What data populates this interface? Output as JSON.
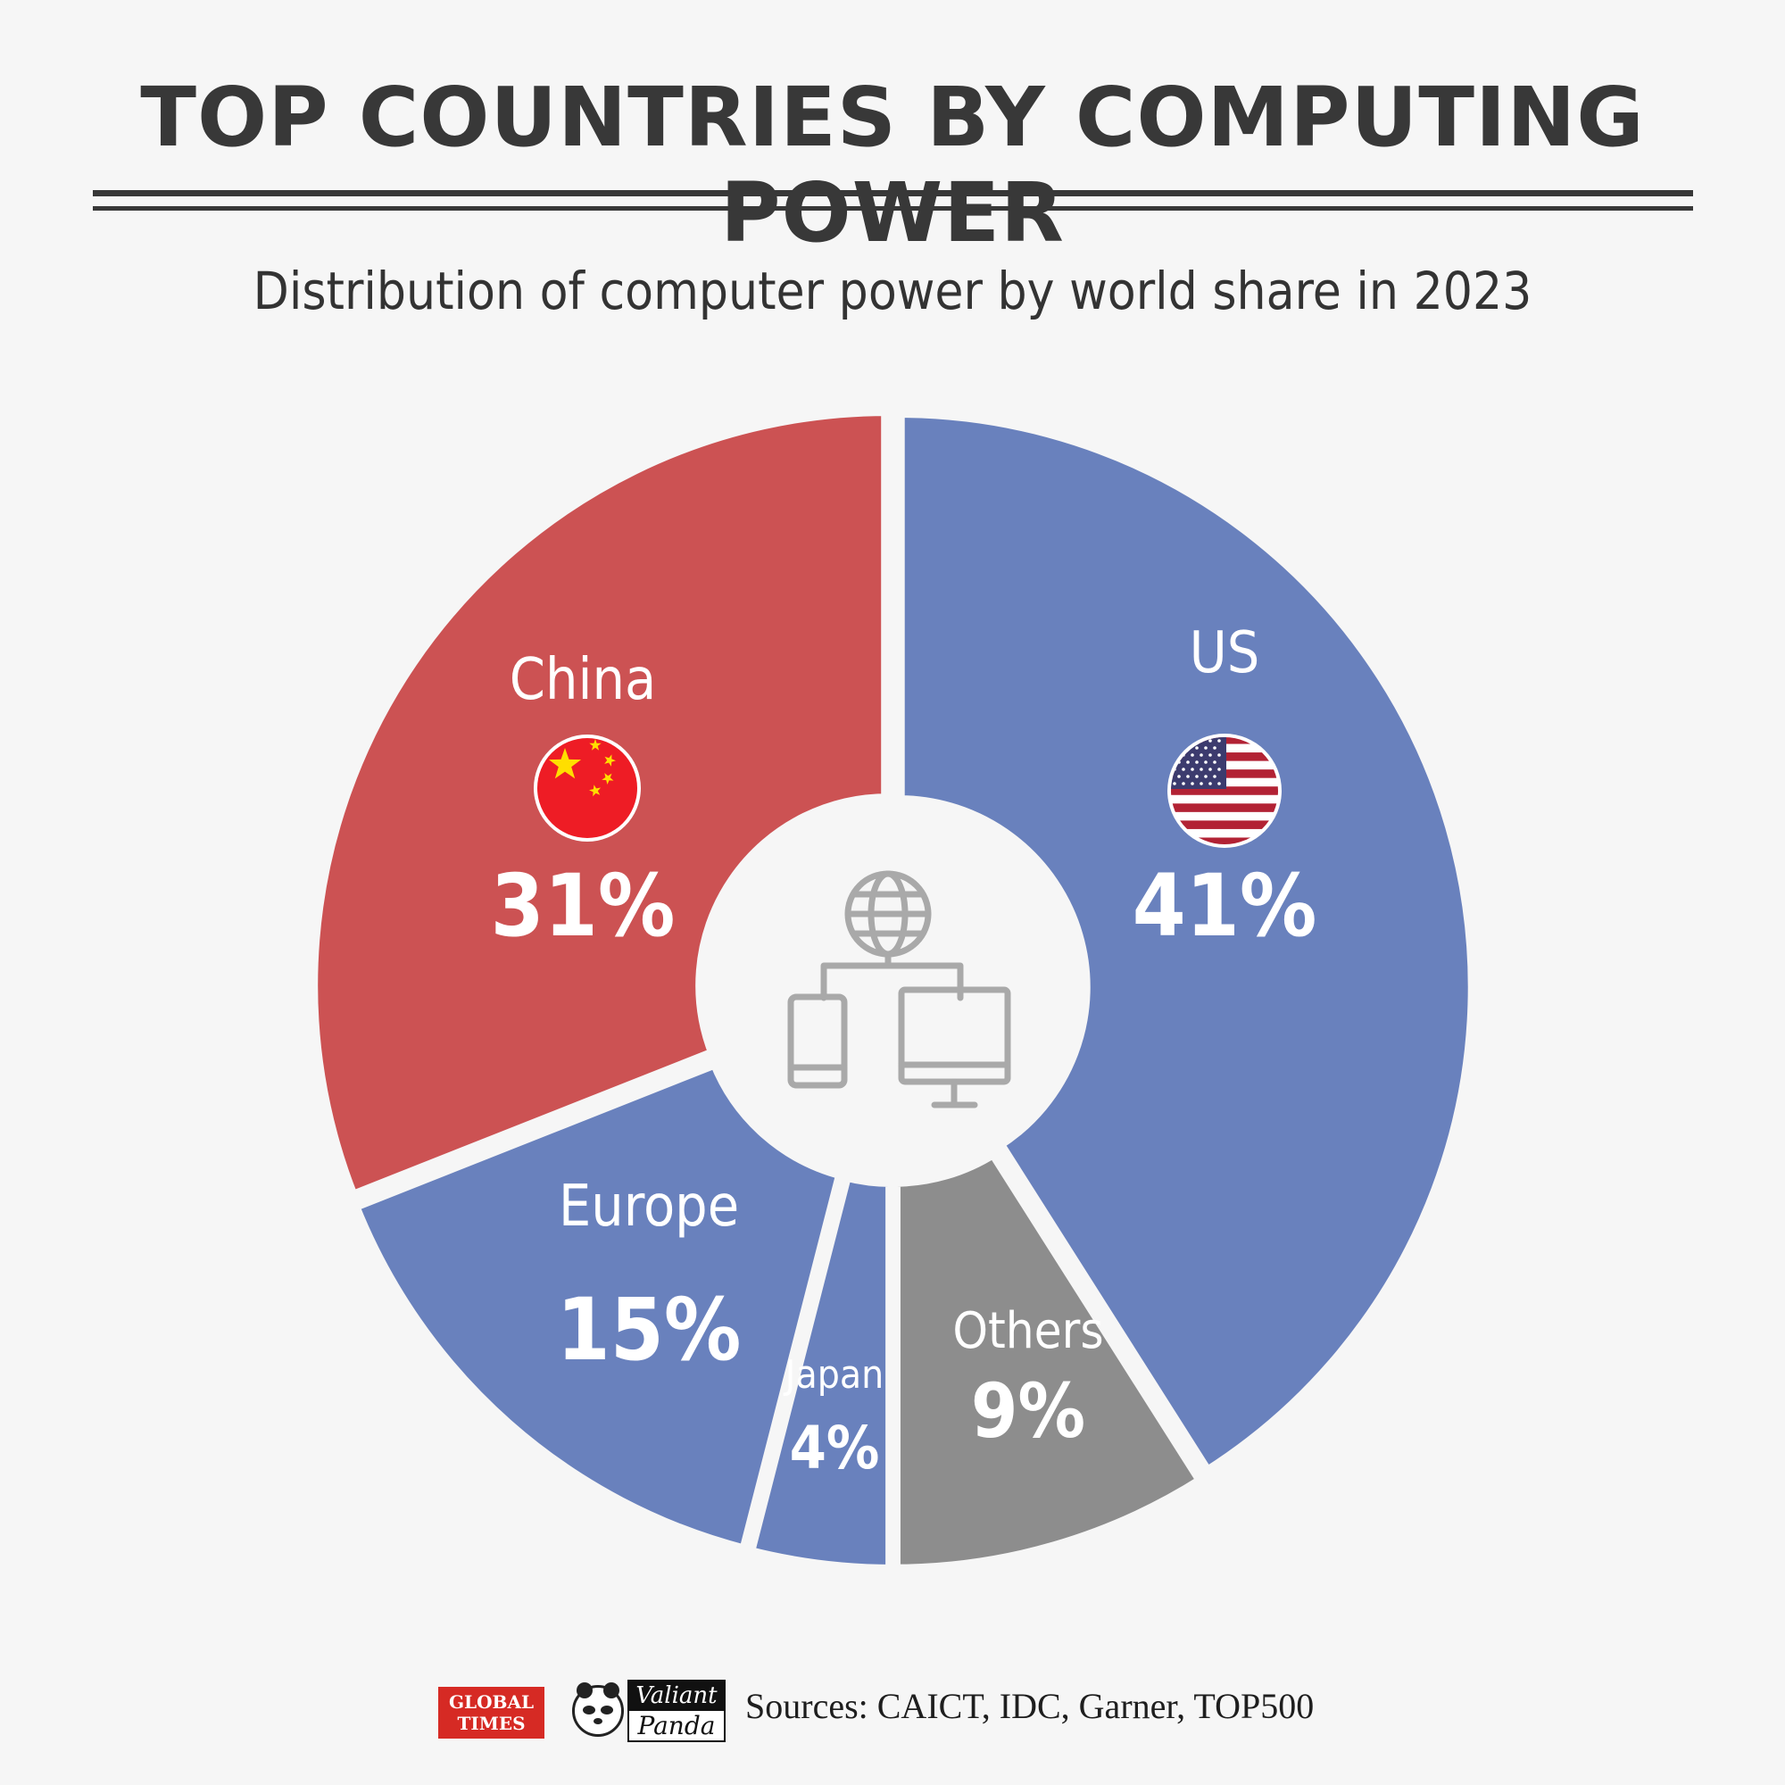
{
  "header": {
    "title": "TOP COUNTRIES BY COMPUTING POWER",
    "subtitle": "Distribution of computer power by world share in 2023"
  },
  "chart_data": {
    "type": "pie",
    "title": "TOP COUNTRIES BY COMPUTING POWER",
    "subtitle": "Distribution of computer power by world share in 2023",
    "unit": "%",
    "slices": [
      {
        "label": "US",
        "value": 41,
        "value_label": "41%",
        "color": "#6981bd",
        "flag": "us-flag-icon"
      },
      {
        "label": "Others",
        "value": 9,
        "value_label": "9%",
        "color": "#8d8d8d"
      },
      {
        "label": "Japan",
        "value": 4,
        "value_label": "4%",
        "color": "#6981bd"
      },
      {
        "label": "Europe",
        "value": 15,
        "value_label": "15%",
        "color": "#6981bd"
      },
      {
        "label": "China",
        "value": 31,
        "value_label": "31%",
        "color": "#cc5253",
        "flag": "china-flag-icon"
      }
    ]
  },
  "colors": {
    "background": "#f6f6f6",
    "title": "#383838",
    "china_red": "#cc5253",
    "blue": "#6981bd",
    "others_gray": "#8d8d8d",
    "center_icon": "#a9a9a9"
  },
  "center_icon": "network-devices-icon",
  "footer": {
    "logo_global_times": [
      "GLOBAL",
      "TIMES"
    ],
    "logo_valiant_panda": [
      "Valiant",
      "Panda"
    ],
    "sources": "Sources: CAICT, IDC, Garner, TOP500"
  }
}
